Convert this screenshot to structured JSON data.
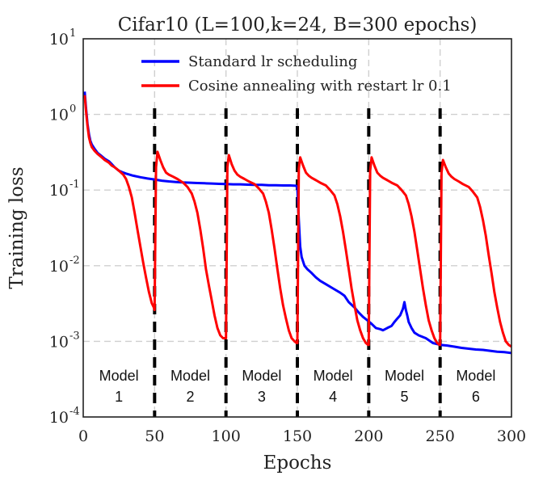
{
  "chart_data": {
    "type": "line",
    "title": "Cifar10 (L=100,k=24, B=300 epochs)",
    "xlabel": "Epochs",
    "ylabel": "Training loss",
    "xlim": [
      0,
      300
    ],
    "ylim": [
      0.0001,
      10
    ],
    "yscale": "log",
    "xticks": [
      "0",
      "50",
      "100",
      "150",
      "200",
      "250",
      "300"
    ],
    "yticks": [
      {
        "base": "10",
        "exp": "-4"
      },
      {
        "base": "10",
        "exp": "-3"
      },
      {
        "base": "10",
        "exp": "-2"
      },
      {
        "base": "10",
        "exp": "-1"
      },
      {
        "base": "10",
        "exp": "0"
      },
      {
        "base": "10",
        "exp": "1"
      }
    ],
    "grid": true,
    "legend": "top-center",
    "series": [
      {
        "name": "Standard lr scheduling",
        "color": "#0000ff",
        "x": [
          1,
          2,
          3,
          4,
          5,
          6,
          8,
          10,
          12,
          15,
          18,
          20,
          22,
          25,
          28,
          30,
          35,
          40,
          45,
          50,
          55,
          60,
          65,
          70,
          75,
          80,
          85,
          90,
          95,
          100,
          105,
          110,
          115,
          120,
          125,
          130,
          135,
          140,
          145,
          149,
          150,
          151,
          152,
          153,
          155,
          157,
          160,
          163,
          166,
          170,
          175,
          180,
          183,
          186,
          190,
          193,
          196,
          199,
          202,
          205,
          208,
          210,
          213,
          216,
          218,
          220,
          222,
          224,
          225,
          226,
          227,
          228,
          230,
          232,
          235,
          240,
          245,
          250,
          255,
          260,
          265,
          270,
          275,
          280,
          285,
          290,
          295,
          300
        ],
        "y": [
          2.0,
          1.2,
          0.75,
          0.55,
          0.45,
          0.4,
          0.35,
          0.31,
          0.29,
          0.26,
          0.24,
          0.22,
          0.2,
          0.18,
          0.17,
          0.165,
          0.155,
          0.148,
          0.142,
          0.138,
          0.133,
          0.13,
          0.128,
          0.126,
          0.125,
          0.124,
          0.123,
          0.122,
          0.121,
          0.12,
          0.119,
          0.119,
          0.118,
          0.117,
          0.117,
          0.116,
          0.116,
          0.115,
          0.115,
          0.114,
          0.11,
          0.04,
          0.018,
          0.013,
          0.01,
          0.009,
          0.008,
          0.007,
          0.0063,
          0.0057,
          0.005,
          0.0044,
          0.004,
          0.0033,
          0.0028,
          0.0024,
          0.0021,
          0.0019,
          0.0017,
          0.0015,
          0.00145,
          0.0014,
          0.0015,
          0.0016,
          0.0018,
          0.002,
          0.0022,
          0.0027,
          0.0033,
          0.0026,
          0.0022,
          0.0018,
          0.0015,
          0.0013,
          0.0012,
          0.0011,
          0.00095,
          0.0009,
          0.00088,
          0.00085,
          0.00082,
          0.0008,
          0.00078,
          0.00077,
          0.00075,
          0.00073,
          0.00072,
          0.0007
        ]
      },
      {
        "name": "Cosine annealing with restart lr 0.1",
        "color": "#ff0000",
        "x": [
          1,
          2,
          3,
          4,
          5,
          6,
          8,
          10,
          12,
          15,
          18,
          20,
          22,
          25,
          28,
          30,
          32,
          34,
          36,
          38,
          40,
          42,
          44,
          46,
          48,
          49.5,
          50,
          51,
          52,
          54,
          56,
          58,
          60,
          63,
          66,
          70,
          73,
          76,
          78,
          80,
          82,
          84,
          86,
          88,
          90,
          92,
          94,
          96,
          98,
          99.5,
          100,
          101,
          102,
          104,
          106,
          108,
          110,
          113,
          116,
          120,
          123,
          126,
          128,
          130,
          132,
          134,
          136,
          138,
          140,
          142,
          144,
          146,
          148,
          149.5,
          150,
          151,
          152,
          154,
          156,
          158,
          160,
          163,
          166,
          170,
          173,
          176,
          178,
          180,
          182,
          184,
          186,
          188,
          190,
          192,
          194,
          196,
          198,
          199.5,
          200,
          201,
          202,
          204,
          206,
          208,
          210,
          213,
          216,
          220,
          223,
          226,
          228,
          230,
          232,
          234,
          236,
          238,
          240,
          242,
          244,
          246,
          248,
          249.5,
          250,
          251,
          252,
          254,
          256,
          258,
          260,
          263,
          266,
          270,
          273,
          276,
          278,
          280,
          282,
          284,
          286,
          288,
          290,
          292,
          294,
          296,
          298,
          300
        ],
        "y": [
          1.8,
          1.1,
          0.7,
          0.5,
          0.42,
          0.37,
          0.33,
          0.3,
          0.28,
          0.25,
          0.23,
          0.21,
          0.2,
          0.18,
          0.16,
          0.14,
          0.11,
          0.08,
          0.05,
          0.03,
          0.018,
          0.011,
          0.007,
          0.0045,
          0.0032,
          0.0028,
          0.0026,
          0.2,
          0.32,
          0.25,
          0.2,
          0.17,
          0.16,
          0.15,
          0.14,
          0.125,
          0.11,
          0.09,
          0.07,
          0.05,
          0.03,
          0.017,
          0.009,
          0.0055,
          0.0035,
          0.0022,
          0.0015,
          0.0012,
          0.0011,
          0.0011,
          0.0011,
          0.2,
          0.29,
          0.22,
          0.18,
          0.16,
          0.15,
          0.14,
          0.13,
          0.12,
          0.105,
          0.09,
          0.07,
          0.05,
          0.03,
          0.017,
          0.009,
          0.005,
          0.003,
          0.002,
          0.0014,
          0.0011,
          0.001,
          0.00095,
          0.00095,
          0.19,
          0.27,
          0.21,
          0.17,
          0.155,
          0.145,
          0.135,
          0.125,
          0.115,
          0.1,
          0.085,
          0.065,
          0.045,
          0.028,
          0.016,
          0.009,
          0.005,
          0.003,
          0.0019,
          0.0014,
          0.0011,
          0.00095,
          0.0009,
          0.0009,
          0.18,
          0.27,
          0.21,
          0.17,
          0.155,
          0.145,
          0.135,
          0.125,
          0.115,
          0.1,
          0.085,
          0.065,
          0.045,
          0.028,
          0.016,
          0.009,
          0.005,
          0.003,
          0.0019,
          0.0014,
          0.0011,
          0.00095,
          0.0009,
          0.0009,
          0.17,
          0.25,
          0.2,
          0.165,
          0.15,
          0.14,
          0.13,
          0.12,
          0.11,
          0.095,
          0.08,
          0.06,
          0.04,
          0.025,
          0.014,
          0.008,
          0.0045,
          0.0028,
          0.0018,
          0.0013,
          0.001,
          0.0009,
          0.00085
        ]
      }
    ],
    "vlines": [
      50,
      100,
      150,
      200,
      250
    ],
    "annotations": [
      {
        "line1": "Model",
        "line2": "1",
        "x": 25
      },
      {
        "line1": "Model",
        "line2": "2",
        "x": 75
      },
      {
        "line1": "Model",
        "line2": "3",
        "x": 125
      },
      {
        "line1": "Model",
        "line2": "4",
        "x": 175
      },
      {
        "line1": "Model",
        "line2": "5",
        "x": 225
      },
      {
        "line1": "Model",
        "line2": "6",
        "x": 275
      }
    ]
  }
}
